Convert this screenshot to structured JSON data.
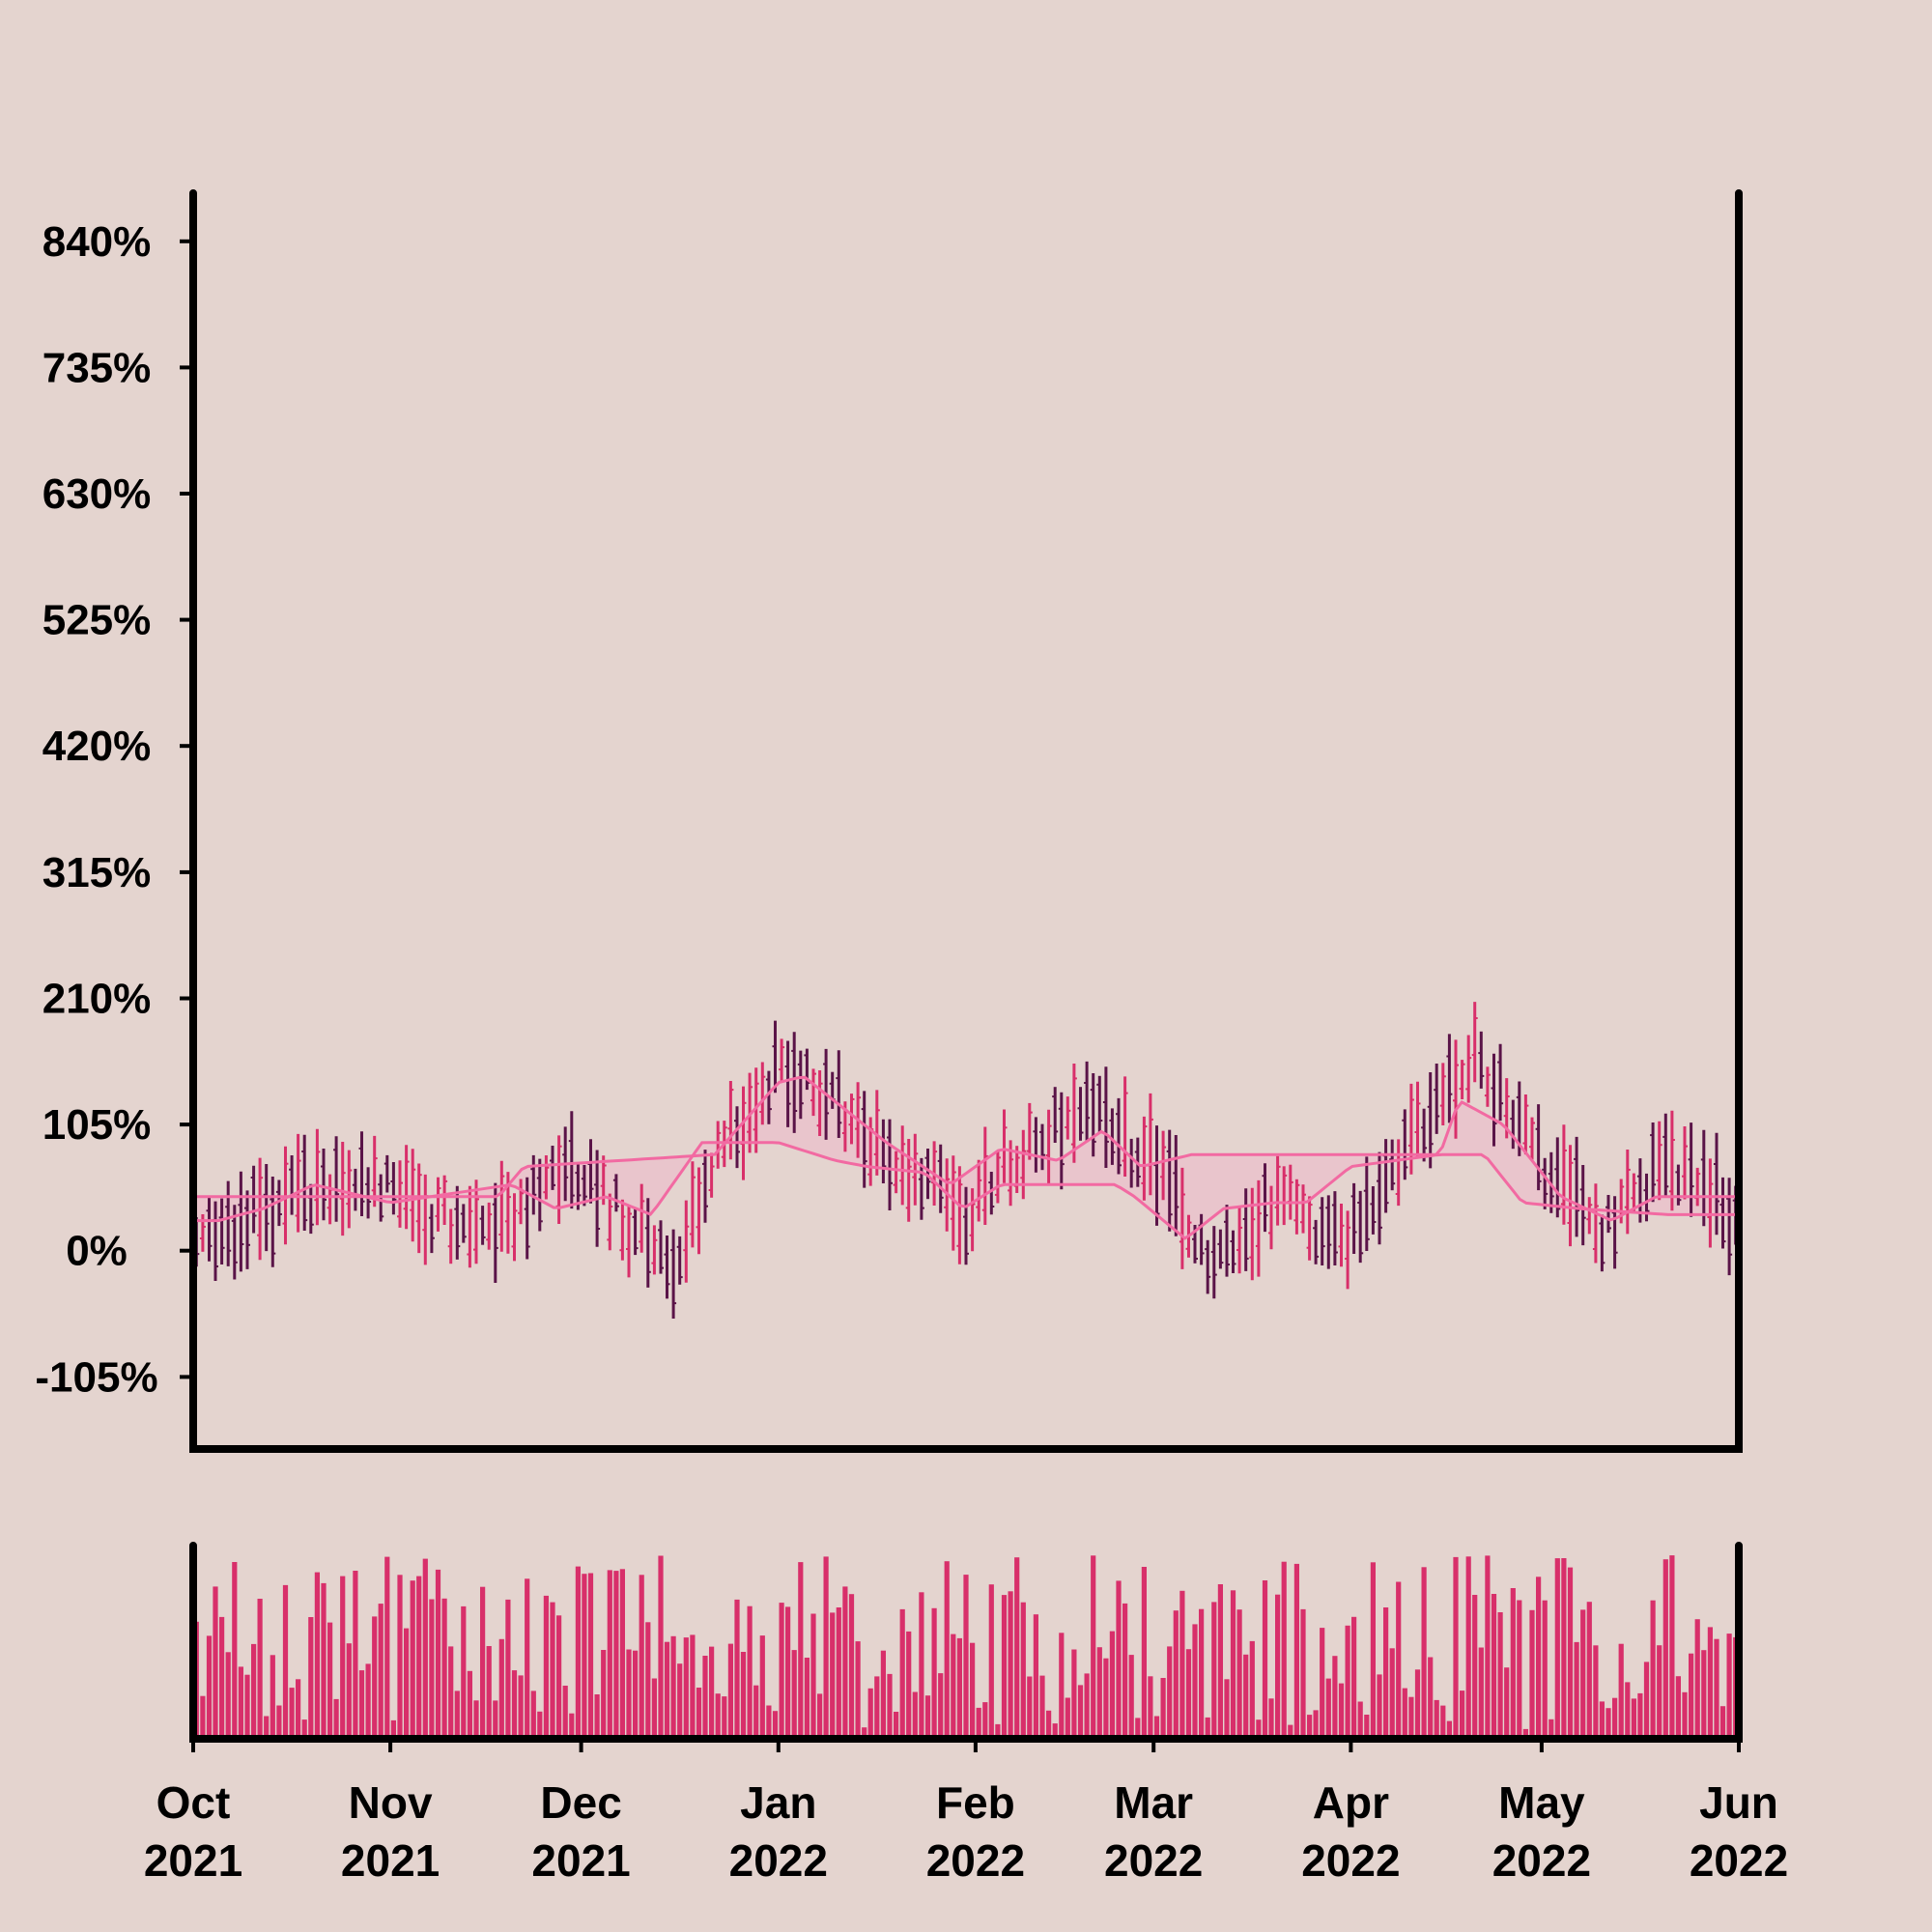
{
  "colors": {
    "background": "#e4d4cf",
    "axis": "#000000",
    "up_bar": "#d82f6a",
    "down_bar": "#5a1448",
    "band_line": "#f26aa2",
    "band_fill": "#efb3c7",
    "volume": "#d82f6a"
  },
  "chart_data": {
    "type": "ohlc",
    "x_range": [
      "2021-10-01",
      "2022-06-01"
    ],
    "ylim": [
      -165,
      880
    ],
    "y_unit": "%",
    "y_tick_values": [
      -105,
      0,
      105,
      210,
      315,
      420,
      525,
      630,
      735,
      840
    ],
    "y_tick_labels": [
      "-105%",
      "0%",
      "105%",
      "210%",
      "315%",
      "420%",
      "525%",
      "630%",
      "735%",
      "840%"
    ],
    "x_tick_labels": [
      {
        "month": "Oct",
        "year": "2021",
        "date": "2021-10-01"
      },
      {
        "month": "Nov",
        "year": "2021",
        "date": "2021-11-01"
      },
      {
        "month": "Dec",
        "year": "2021",
        "date": "2021-12-01"
      },
      {
        "month": "Jan",
        "year": "2022",
        "date": "2022-01-01"
      },
      {
        "month": "Feb",
        "year": "2022",
        "date": "2022-02-01"
      },
      {
        "month": "Mar",
        "year": "2022",
        "date": "2022-03-01"
      },
      {
        "month": "Apr",
        "year": "2022",
        "date": "2022-04-01"
      },
      {
        "month": "May",
        "year": "2022",
        "date": "2022-05-01"
      },
      {
        "month": "Jun",
        "year": "2022",
        "date": "2022-06-01"
      }
    ],
    "price_trend": [
      {
        "date": "2021-10-01",
        "value": 8
      },
      {
        "date": "2021-10-15",
        "value": 40
      },
      {
        "date": "2021-10-28",
        "value": 58
      },
      {
        "date": "2021-11-10",
        "value": 25
      },
      {
        "date": "2021-11-20",
        "value": 22
      },
      {
        "date": "2021-11-28",
        "value": 78
      },
      {
        "date": "2021-12-08",
        "value": 22
      },
      {
        "date": "2021-12-15",
        "value": -12
      },
      {
        "date": "2021-12-22",
        "value": 80
      },
      {
        "date": "2022-01-01",
        "value": 155
      },
      {
        "date": "2022-01-10",
        "value": 120
      },
      {
        "date": "2022-01-20",
        "value": 70
      },
      {
        "date": "2022-01-30",
        "value": 30
      },
      {
        "date": "2022-02-05",
        "value": 75
      },
      {
        "date": "2022-02-18",
        "value": 115
      },
      {
        "date": "2022-02-28",
        "value": 75
      },
      {
        "date": "2022-03-10",
        "value": -10
      },
      {
        "date": "2022-03-20",
        "value": 45
      },
      {
        "date": "2022-03-30",
        "value": 5
      },
      {
        "date": "2022-04-10",
        "value": 90
      },
      {
        "date": "2022-04-20",
        "value": 160
      },
      {
        "date": "2022-04-30",
        "value": 75
      },
      {
        "date": "2022-05-10",
        "value": 15
      },
      {
        "date": "2022-05-20",
        "value": 70
      },
      {
        "date": "2022-05-31",
        "value": 30
      }
    ],
    "band_upper": [
      {
        "date": "2021-10-01",
        "value": 45
      },
      {
        "date": "2021-11-18",
        "value": 45
      },
      {
        "date": "2021-11-22",
        "value": 70
      },
      {
        "date": "2021-12-22",
        "value": 80
      },
      {
        "date": "2022-01-01",
        "value": 140
      },
      {
        "date": "2022-01-05",
        "value": 145
      },
      {
        "date": "2022-01-18",
        "value": 90
      },
      {
        "date": "2022-01-28",
        "value": 55
      },
      {
        "date": "2022-02-05",
        "value": 85
      },
      {
        "date": "2022-02-14",
        "value": 75
      },
      {
        "date": "2022-02-21",
        "value": 100
      },
      {
        "date": "2022-02-27",
        "value": 70
      },
      {
        "date": "2022-03-07",
        "value": 80
      },
      {
        "date": "2022-04-15",
        "value": 80
      },
      {
        "date": "2022-04-18",
        "value": 125
      },
      {
        "date": "2022-04-25",
        "value": 105
      },
      {
        "date": "2022-05-04",
        "value": 45
      },
      {
        "date": "2022-05-12",
        "value": 25
      },
      {
        "date": "2022-05-19",
        "value": 45
      },
      {
        "date": "2022-05-31",
        "value": 45
      }
    ],
    "band_lower": [
      {
        "date": "2021-10-01",
        "value": 25
      },
      {
        "date": "2021-10-05",
        "value": 25
      },
      {
        "date": "2021-10-12",
        "value": 35
      },
      {
        "date": "2021-10-20",
        "value": 55
      },
      {
        "date": "2021-11-01",
        "value": 40
      },
      {
        "date": "2021-11-20",
        "value": 55
      },
      {
        "date": "2021-11-27",
        "value": 35
      },
      {
        "date": "2021-12-05",
        "value": 45
      },
      {
        "date": "2021-12-12",
        "value": 30
      },
      {
        "date": "2021-12-20",
        "value": 90
      },
      {
        "date": "2022-01-01",
        "value": 90
      },
      {
        "date": "2022-01-10",
        "value": 75
      },
      {
        "date": "2022-01-15",
        "value": 70
      },
      {
        "date": "2022-01-24",
        "value": 65
      },
      {
        "date": "2022-01-30",
        "value": 35
      },
      {
        "date": "2022-02-05",
        "value": 55
      },
      {
        "date": "2022-02-23",
        "value": 55
      },
      {
        "date": "2022-02-26",
        "value": 45
      },
      {
        "date": "2022-03-06",
        "value": 10
      },
      {
        "date": "2022-03-12",
        "value": 35
      },
      {
        "date": "2022-03-20",
        "value": 40
      },
      {
        "date": "2022-03-25",
        "value": 40
      },
      {
        "date": "2022-04-01",
        "value": 70
      },
      {
        "date": "2022-04-15",
        "value": 80
      },
      {
        "date": "2022-04-22",
        "value": 80
      },
      {
        "date": "2022-04-28",
        "value": 40
      },
      {
        "date": "2022-05-07",
        "value": 35
      },
      {
        "date": "2022-05-21",
        "value": 30
      },
      {
        "date": "2022-05-26",
        "value": 30
      },
      {
        "date": "2022-05-31",
        "value": 30
      }
    ],
    "volume": {
      "scale_max": 100,
      "level_range": [
        5,
        95
      ]
    }
  }
}
